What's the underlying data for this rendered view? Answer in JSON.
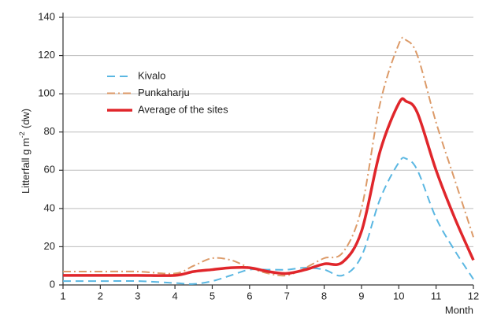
{
  "chart_data": {
    "type": "line",
    "ylabel": "Litterfall g m",
    "ylabel_sup": "-2",
    "ylabel_suffix": "(dw)",
    "xlabel": "Month",
    "x": [
      1,
      2,
      3,
      4,
      4.5,
      5,
      5.5,
      6,
      6.5,
      7,
      7.5,
      8,
      8.5,
      9,
      9.5,
      10,
      10.2,
      10.5,
      11,
      11.5,
      12
    ],
    "series": [
      {
        "name": "Kivalo",
        "color": "#5ab7e2",
        "dash": "dashed",
        "width": 2,
        "values": [
          2,
          2,
          2,
          1,
          0.5,
          2,
          5,
          8,
          8,
          8,
          9,
          8,
          5,
          15,
          45,
          64,
          66,
          60,
          35,
          18,
          3
        ]
      },
      {
        "name": "Punkaharju",
        "color": "#dc9a68",
        "dash": "dashdot",
        "width": 2,
        "values": [
          7,
          7,
          7,
          6,
          10,
          14,
          13,
          9,
          6,
          5,
          9,
          14,
          17,
          40,
          95,
          126,
          128,
          120,
          85,
          55,
          25
        ]
      },
      {
        "name": "Average of the sites",
        "color": "#e0262b",
        "dash": "solid",
        "width": 3.5,
        "values": [
          5,
          5,
          5,
          5,
          7,
          8,
          9,
          9,
          7,
          6,
          8,
          11,
          12,
          28,
          70,
          95,
          96,
          90,
          60,
          35,
          13
        ]
      }
    ],
    "xlim": [
      1,
      12
    ],
    "xticks": [
      1,
      2,
      3,
      4,
      5,
      6,
      7,
      8,
      9,
      10,
      11,
      12
    ],
    "ylim": [
      0,
      140
    ],
    "yticks": [
      0,
      20,
      40,
      60,
      80,
      100,
      120,
      140
    ],
    "grid": true,
    "legend": "upper left"
  }
}
